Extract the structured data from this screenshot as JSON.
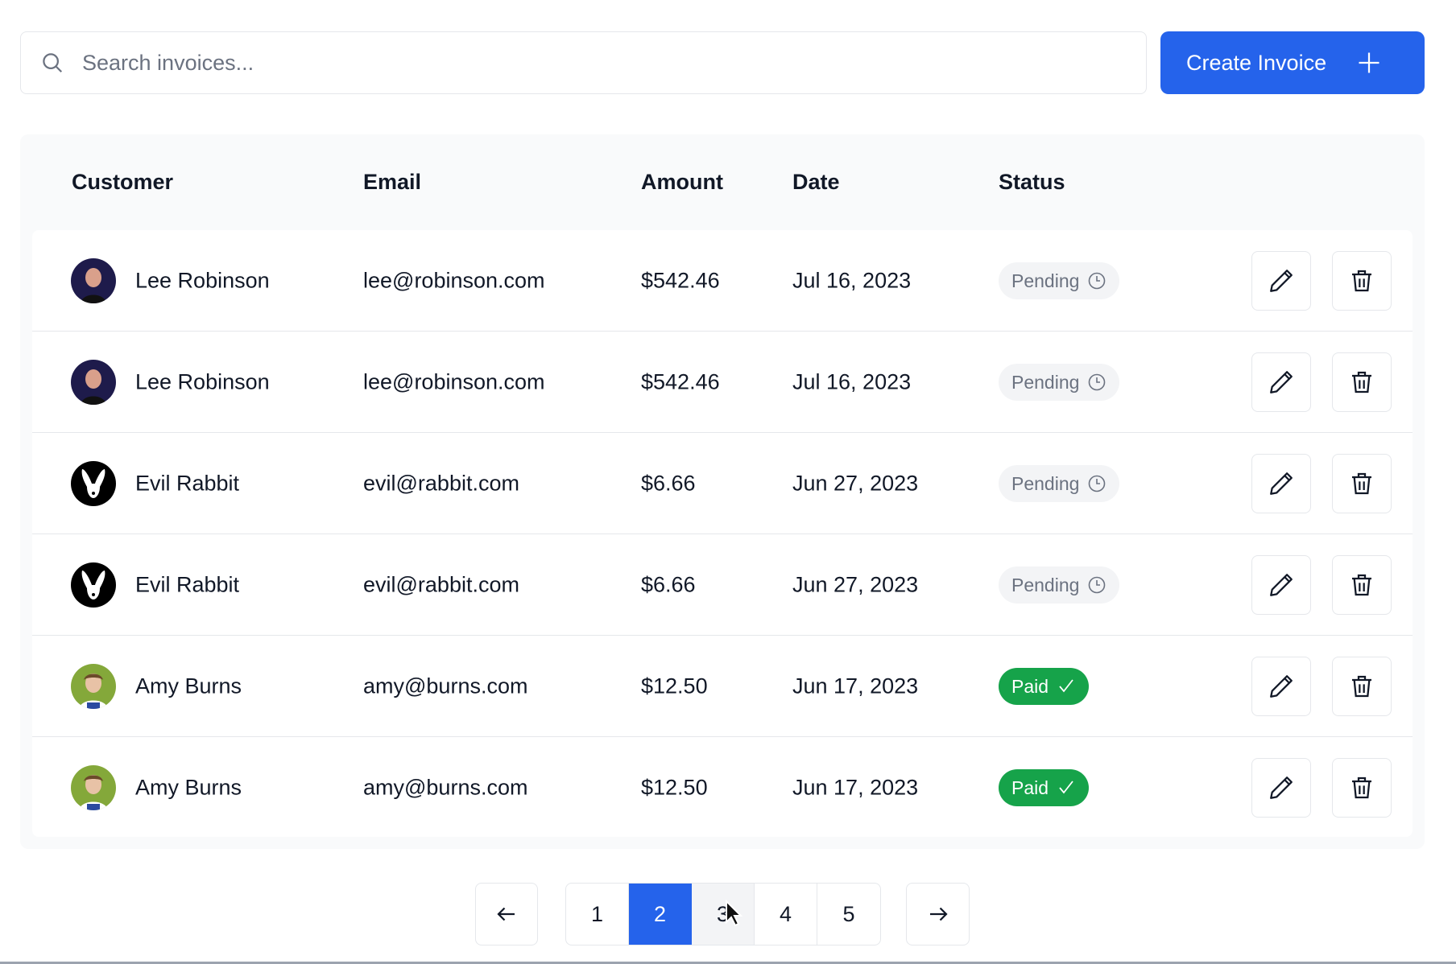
{
  "search": {
    "placeholder": "Search invoices...",
    "icon": "search-icon"
  },
  "create_button": {
    "label": "Create Invoice",
    "icon": "plus-icon",
    "color": "#2563eb"
  },
  "table": {
    "headers": [
      "Customer",
      "Email",
      "Amount",
      "Date",
      "Status"
    ],
    "rows": [
      {
        "name": "Lee Robinson",
        "email": "lee@robinson.com",
        "amount": "$542.46",
        "date": "Jul 16, 2023",
        "status": "Pending",
        "avatar": "lee"
      },
      {
        "name": "Lee Robinson",
        "email": "lee@robinson.com",
        "amount": "$542.46",
        "date": "Jul 16, 2023",
        "status": "Pending",
        "avatar": "lee"
      },
      {
        "name": "Evil Rabbit",
        "email": "evil@rabbit.com",
        "amount": "$6.66",
        "date": "Jun 27, 2023",
        "status": "Pending",
        "avatar": "rabbit"
      },
      {
        "name": "Evil Rabbit",
        "email": "evil@rabbit.com",
        "amount": "$6.66",
        "date": "Jun 27, 2023",
        "status": "Pending",
        "avatar": "rabbit"
      },
      {
        "name": "Amy Burns",
        "email": "amy@burns.com",
        "amount": "$12.50",
        "date": "Jun 17, 2023",
        "status": "Paid",
        "avatar": "amy"
      },
      {
        "name": "Amy Burns",
        "email": "amy@burns.com",
        "amount": "$12.50",
        "date": "Jun 17, 2023",
        "status": "Paid",
        "avatar": "amy"
      }
    ]
  },
  "status_colors": {
    "Pending": "#f3f4f6",
    "Paid": "#16a34a"
  },
  "pagination": {
    "pages": [
      "1",
      "2",
      "3",
      "4",
      "5"
    ],
    "current": "2"
  }
}
